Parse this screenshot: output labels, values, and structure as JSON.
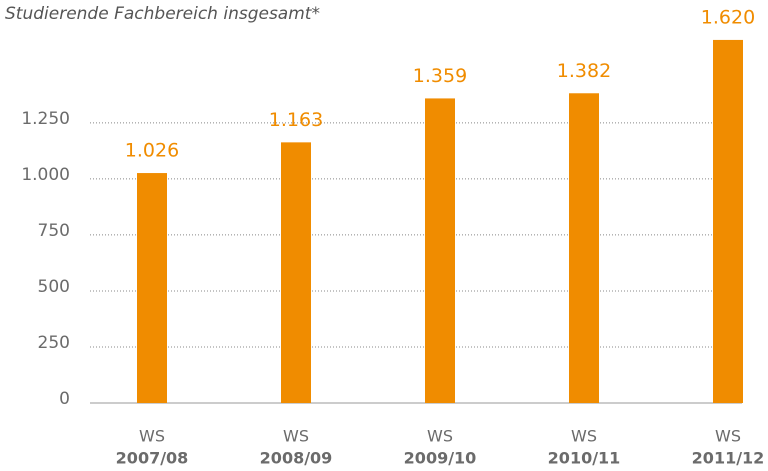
{
  "chart_data": {
    "type": "bar",
    "title": "Studierende Fachbereich insgesamt*",
    "categories": [
      [
        "WS",
        "2007/08"
      ],
      [
        "WS",
        "2008/09"
      ],
      [
        "WS",
        "2009/10"
      ],
      [
        "WS",
        "2010/11"
      ],
      [
        "WS",
        "2011/12"
      ]
    ],
    "values": [
      1026,
      1163,
      1359,
      1382,
      1620
    ],
    "value_labels": [
      "1.026",
      "1.163",
      "1.359",
      "1.382",
      "1.620"
    ],
    "color": "#f08c00",
    "ylim": [
      0,
      1700
    ],
    "yticks": [
      0,
      250,
      500,
      750,
      {
        "value": 1000,
        "label": "1.000"
      },
      {
        "value": 1250,
        "label": "1.250"
      }
    ],
    "grid": true
  }
}
